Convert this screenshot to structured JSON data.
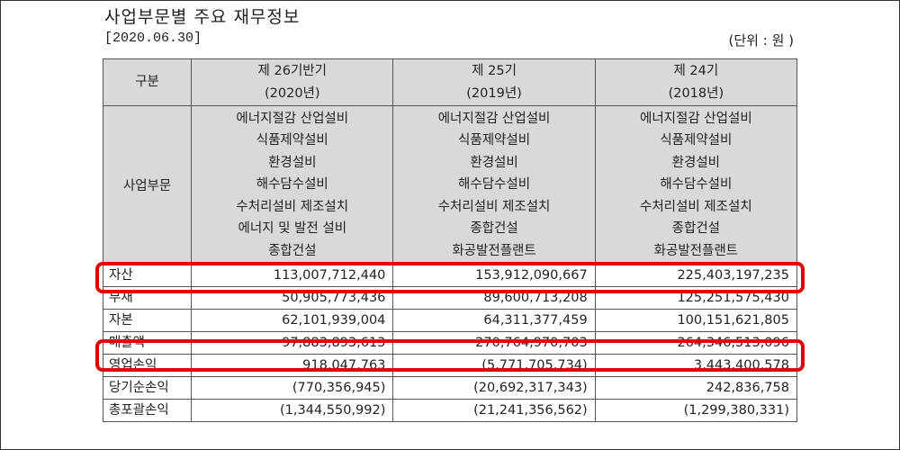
{
  "title": "사업부문별 주요 재무정보",
  "date": "[2020.06.30]",
  "unit": "(단위 : 원 )",
  "header": {
    "label": "구분",
    "periods": [
      {
        "name": "제 26기반기",
        "year": "(2020년)"
      },
      {
        "name": "제 25기",
        "year": "(2019년)"
      },
      {
        "name": "제 24기",
        "year": "(2018년)"
      }
    ]
  },
  "business": {
    "label": "사업부문",
    "columns": [
      [
        "에너지절감 산업설비",
        "식품제약설비",
        "환경설비",
        "해수담수설비",
        "수처리설비 제조설치",
        "에너지 및 발전 설비",
        "종합건설"
      ],
      [
        "에너지절감 산업설비",
        "식품제약설비",
        "환경설비",
        "해수담수설비",
        "수처리설비 제조설치",
        "종합건설",
        "화공발전플랜트"
      ],
      [
        "에너지절감 산업설비",
        "식품제약설비",
        "환경설비",
        "해수담수설비",
        "수처리설비 제조설치",
        "종합건설",
        "화공발전플랜트"
      ]
    ]
  },
  "rows": [
    {
      "label": "자산",
      "values": [
        "113,007,712,440",
        "153,912,090,667",
        "225,403,197,235"
      ]
    },
    {
      "label": "부채",
      "values": [
        "50,905,773,436",
        "89,600,713,208",
        "125,251,575,430"
      ]
    },
    {
      "label": "자본",
      "values": [
        "62,101,939,004",
        "64,311,377,459",
        "100,151,621,805"
      ]
    },
    {
      "label": "매출액",
      "values": [
        "97,883,893,613",
        "270,764,970,703",
        "264,346,513,096"
      ]
    },
    {
      "label": "영업손익",
      "values": [
        "918,047,763",
        "(5,771,705,734)",
        "3,443,400,578"
      ]
    },
    {
      "label": "당기순손익",
      "values": [
        "(770,356,945)",
        "(20,692,317,343)",
        "242,836,758"
      ]
    },
    {
      "label": "총포괄손익",
      "values": [
        "(1,344,550,992)",
        "(21,241,356,562)",
        "(1,299,380,331)"
      ]
    }
  ]
}
